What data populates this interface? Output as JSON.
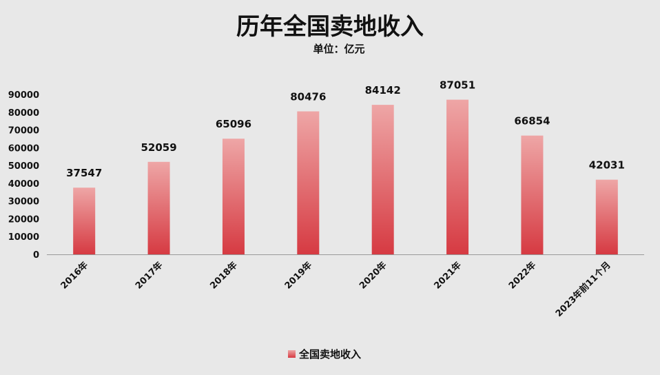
{
  "chart_data": {
    "type": "bar",
    "title": "历年全国卖地收入",
    "subtitle": "单位：亿元",
    "categories": [
      "2016年",
      "2017年",
      "2018年",
      "2019年",
      "2020年",
      "2021年",
      "2022年",
      "2023年前11个月"
    ],
    "series": [
      {
        "name": "全国卖地收入",
        "values": [
          37547,
          52059,
          65096,
          80476,
          84142,
          87051,
          66854,
          42031
        ]
      }
    ],
    "yticks": [
      "0",
      "10000",
      "20000",
      "30000",
      "40000",
      "50000",
      "60000",
      "70000",
      "80000",
      "90000"
    ],
    "ylim": [
      0,
      90000
    ],
    "xlabel": "",
    "ylabel": "",
    "legend_position": "bottom",
    "grid": false,
    "colors": {
      "bar_top": "#eea6a6",
      "bar_bottom": "#d63a42",
      "background": "#e8e8e8",
      "axis": "#9a9a9a"
    }
  }
}
